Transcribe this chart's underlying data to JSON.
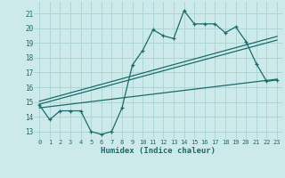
{
  "x_main": [
    0,
    1,
    2,
    3,
    4,
    5,
    6,
    7,
    8,
    9,
    10,
    11,
    12,
    13,
    14,
    15,
    16,
    17,
    18,
    19,
    20,
    21,
    22,
    23
  ],
  "y_main": [
    14.8,
    13.8,
    14.4,
    14.4,
    14.4,
    13.0,
    12.8,
    13.0,
    14.6,
    17.5,
    18.5,
    19.9,
    19.5,
    19.3,
    21.2,
    20.3,
    20.3,
    20.3,
    19.7,
    20.1,
    19.1,
    17.6,
    16.4,
    16.5
  ],
  "trend1_x": [
    0,
    23
  ],
  "trend1_y": [
    15.05,
    19.45
  ],
  "trend2_x": [
    0,
    23
  ],
  "trend2_y": [
    14.85,
    19.2
  ],
  "trend3_x": [
    0,
    23
  ],
  "trend3_y": [
    14.6,
    16.55
  ],
  "bg_color": "#cdeaea",
  "line_color": "#1a6b6b",
  "grid_color": "#aed6d6",
  "xlabel": "Humidex (Indice chaleur)",
  "ylim": [
    12.5,
    21.8
  ],
  "xlim": [
    -0.5,
    23.5
  ],
  "yticks": [
    13,
    14,
    15,
    16,
    17,
    18,
    19,
    20,
    21
  ],
  "xticks": [
    0,
    1,
    2,
    3,
    4,
    5,
    6,
    7,
    8,
    9,
    10,
    11,
    12,
    13,
    14,
    15,
    16,
    17,
    18,
    19,
    20,
    21,
    22,
    23
  ],
  "xtick_labels": [
    "0",
    "1",
    "2",
    "3",
    "4",
    "5",
    "6",
    "7",
    "8",
    "9",
    "10",
    "11",
    "12",
    "13",
    "14",
    "15",
    "16",
    "17",
    "18",
    "19",
    "20",
    "21",
    "22",
    "23"
  ]
}
